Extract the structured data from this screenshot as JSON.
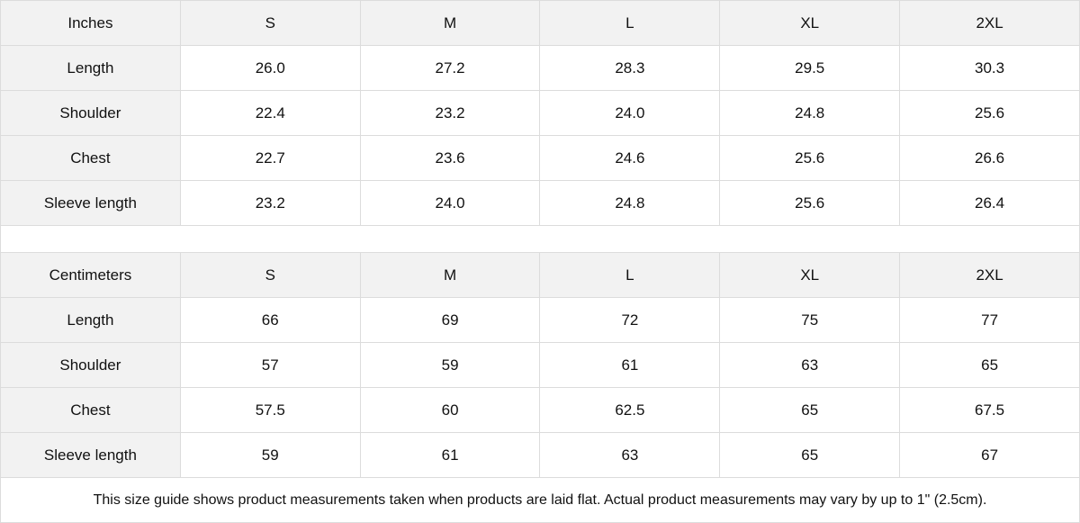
{
  "tables": [
    {
      "unit": "Inches",
      "sizes": [
        "S",
        "M",
        "L",
        "XL",
        "2XL"
      ],
      "rows": [
        {
          "label": "Length",
          "values": [
            "26.0",
            "27.2",
            "28.3",
            "29.5",
            "30.3"
          ]
        },
        {
          "label": "Shoulder",
          "values": [
            "22.4",
            "23.2",
            "24.0",
            "24.8",
            "25.6"
          ]
        },
        {
          "label": "Chest",
          "values": [
            "22.7",
            "23.6",
            "24.6",
            "25.6",
            "26.6"
          ]
        },
        {
          "label": "Sleeve length",
          "values": [
            "23.2",
            "24.0",
            "24.8",
            "25.6",
            "26.4"
          ]
        }
      ]
    },
    {
      "unit": "Centimeters",
      "sizes": [
        "S",
        "M",
        "L",
        "XL",
        "2XL"
      ],
      "rows": [
        {
          "label": "Length",
          "values": [
            "66",
            "69",
            "72",
            "75",
            "77"
          ]
        },
        {
          "label": "Shoulder",
          "values": [
            "57",
            "59",
            "61",
            "63",
            "65"
          ]
        },
        {
          "label": "Chest",
          "values": [
            "57.5",
            "60",
            "62.5",
            "65",
            "67.5"
          ]
        },
        {
          "label": "Sleeve length",
          "values": [
            "59",
            "61",
            "63",
            "65",
            "67"
          ]
        }
      ]
    }
  ],
  "note": "This size guide shows product measurements taken when products are laid flat.  Actual product measurements may vary by up to 1\" (2.5cm).",
  "colors": {
    "header_bg": "#f2f2f2",
    "border": "#dcdcdc"
  }
}
